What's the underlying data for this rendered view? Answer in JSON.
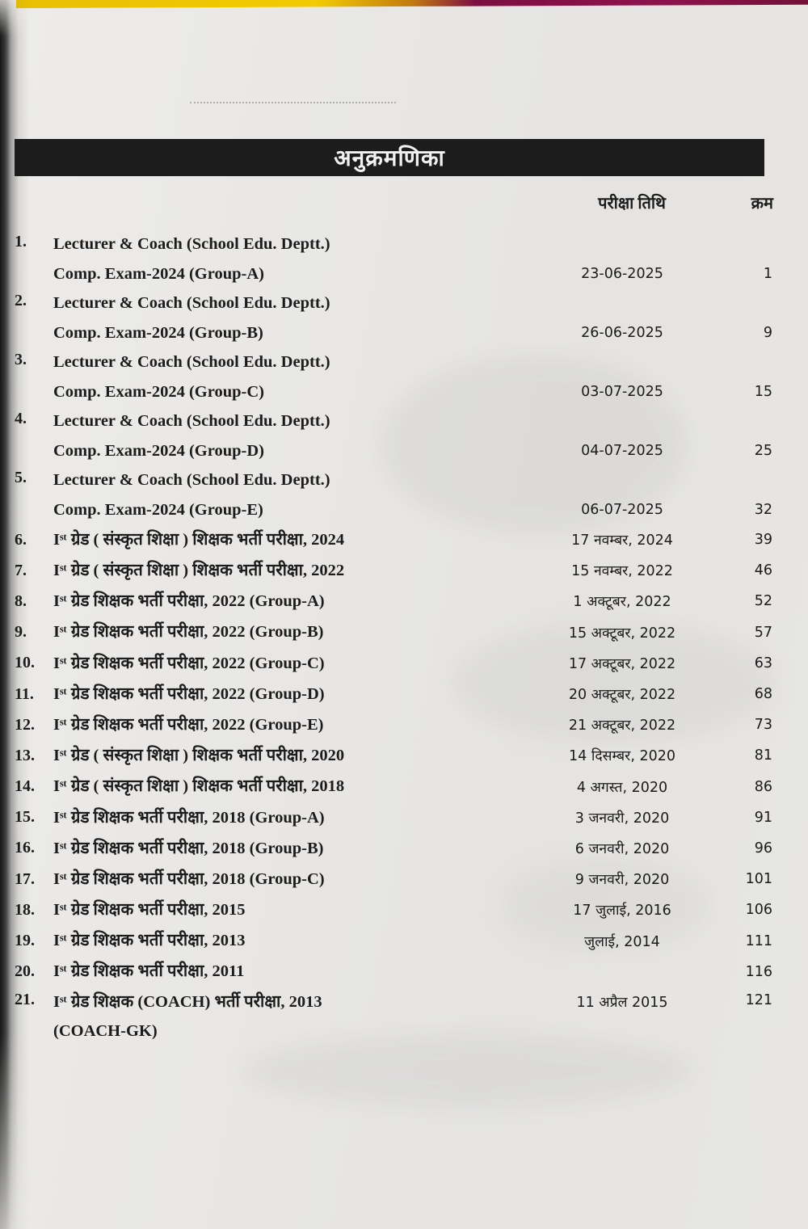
{
  "header": {
    "title": "अनुक्रमणिका",
    "col_date": "परीक्षा तिथि",
    "col_serial": "क्रम"
  },
  "entries": [
    {
      "num": "1.",
      "line1": "Lecturer & Coach (School Edu. Deptt.)",
      "line2": "Comp. Exam-2024 (Group-A)",
      "date": "23-06-2025",
      "page": "1"
    },
    {
      "num": "2.",
      "line1": "Lecturer & Coach (School Edu. Deptt.)",
      "line2": "Comp. Exam-2024 (Group-B)",
      "date": "26-06-2025",
      "page": "9"
    },
    {
      "num": "3.",
      "line1": "Lecturer & Coach (School Edu. Deptt.)",
      "line2": "Comp. Exam-2024 (Group-C)",
      "date": "03-07-2025",
      "page": "15"
    },
    {
      "num": "4.",
      "line1": "Lecturer & Coach (School Edu. Deptt.)",
      "line2": "Comp. Exam-2024 (Group-D)",
      "date": "04-07-2025",
      "page": "25"
    },
    {
      "num": "5.",
      "line1": "Lecturer & Coach (School Edu. Deptt.)",
      "line2": "Comp. Exam-2024 (Group-E)",
      "date": "06-07-2025",
      "page": "32"
    },
    {
      "num": "6.",
      "line1": "Iˢᵗ ग्रेड ( संस्कृत शिक्षा ) शिक्षक भर्ती परीक्षा, 2024",
      "date": "17 नवम्बर, 2024",
      "page": "39"
    },
    {
      "num": "7.",
      "line1": "Iˢᵗ ग्रेड ( संस्कृत शिक्षा ) शिक्षक भर्ती परीक्षा, 2022",
      "date": "15 नवम्बर, 2022",
      "page": "46"
    },
    {
      "num": "8.",
      "line1": "Iˢᵗ ग्रेड शिक्षक भर्ती परीक्षा, 2022 (Group-A)",
      "date": "1 अक्टूबर, 2022",
      "page": "52"
    },
    {
      "num": "9.",
      "line1": "Iˢᵗ ग्रेड शिक्षक भर्ती परीक्षा, 2022 (Group-B)",
      "date": "15 अक्टूबर, 2022",
      "page": "57"
    },
    {
      "num": "10.",
      "line1": "Iˢᵗ ग्रेड शिक्षक भर्ती परीक्षा, 2022 (Group-C)",
      "date": "17 अक्टूबर, 2022",
      "page": "63"
    },
    {
      "num": "11.",
      "line1": "Iˢᵗ ग्रेड शिक्षक भर्ती परीक्षा, 2022 (Group-D)",
      "date": "20 अक्टूबर, 2022",
      "page": "68"
    },
    {
      "num": "12.",
      "line1": "Iˢᵗ ग्रेड शिक्षक भर्ती परीक्षा, 2022 (Group-E)",
      "date": "21 अक्टूबर, 2022",
      "page": "73"
    },
    {
      "num": "13.",
      "line1": "Iˢᵗ ग्रेड ( संस्कृत शिक्षा ) शिक्षक भर्ती परीक्षा, 2020",
      "date": "14 दिसम्बर, 2020",
      "page": "81"
    },
    {
      "num": "14.",
      "line1": "Iˢᵗ ग्रेड ( संस्कृत शिक्षा ) शिक्षक भर्ती परीक्षा, 2018",
      "date": "4 अगस्त, 2020",
      "page": "86"
    },
    {
      "num": "15.",
      "line1": "Iˢᵗ ग्रेड शिक्षक भर्ती परीक्षा, 2018 (Group-A)",
      "date": "3 जनवरी, 2020",
      "page": "91"
    },
    {
      "num": "16.",
      "line1": "Iˢᵗ ग्रेड शिक्षक भर्ती परीक्षा, 2018 (Group-B)",
      "date": "6 जनवरी, 2020",
      "page": "96"
    },
    {
      "num": "17.",
      "line1": "Iˢᵗ ग्रेड शिक्षक भर्ती परीक्षा, 2018 (Group-C)",
      "date": "9 जनवरी, 2020",
      "page": "101"
    },
    {
      "num": "18.",
      "line1": "Iˢᵗ ग्रेड शिक्षक भर्ती परीक्षा, 2015",
      "date": "17 जुलाई, 2016",
      "page": "106"
    },
    {
      "num": "19.",
      "line1": "Iˢᵗ ग्रेड शिक्षक भर्ती परीक्षा, 2013",
      "date": "जुलाई, 2014",
      "page": "111"
    },
    {
      "num": "20.",
      "line1": "Iˢᵗ ग्रेड शिक्षक भर्ती परीक्षा, 2011",
      "date": "",
      "page": "116"
    },
    {
      "num": "21.",
      "line1": "Iˢᵗ ग्रेड शिक्षक (COACH) भर्ती परीक्षा, 2013",
      "line2": "(COACH-GK)",
      "date": "11 अप्रैल 2015",
      "page": "121"
    }
  ]
}
